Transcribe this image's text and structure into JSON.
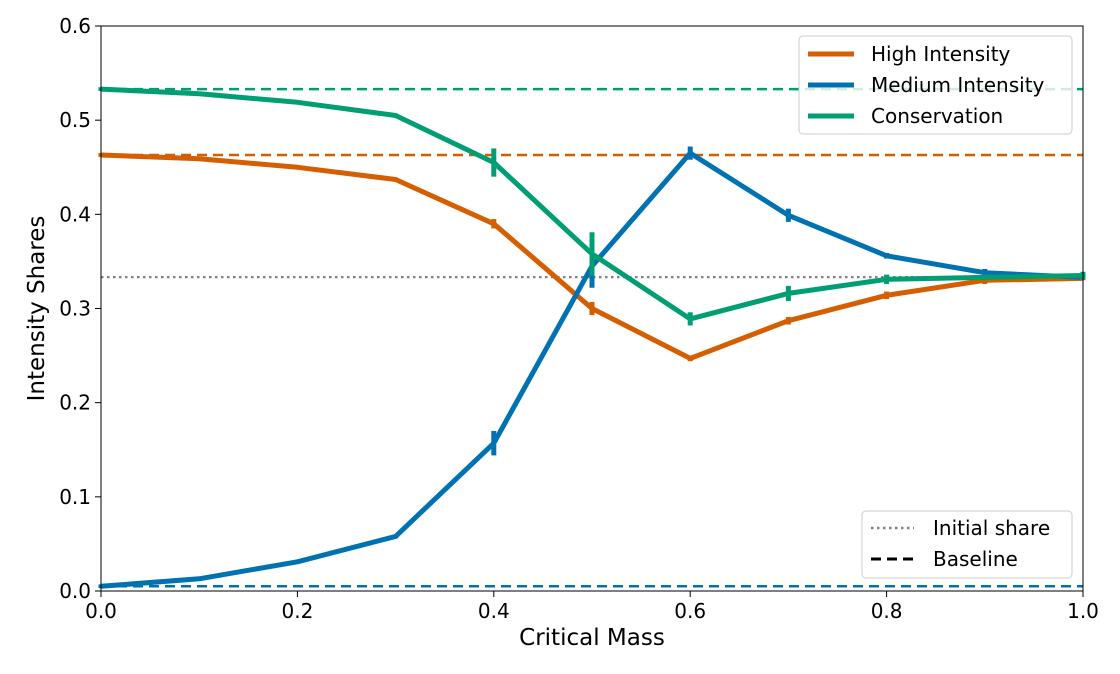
{
  "chart_data": {
    "type": "line",
    "title": "",
    "xlabel": "Critical Mass",
    "ylabel": "Intensity Shares",
    "xlim": [
      0.0,
      1.0
    ],
    "ylim": [
      0.0,
      0.6
    ],
    "xticks": [
      "0.0",
      "0.2",
      "0.4",
      "0.6",
      "0.8",
      "1.0"
    ],
    "xtick_values": [
      0.0,
      0.2,
      0.4,
      0.6,
      0.8,
      1.0
    ],
    "yticks": [
      "0.0",
      "0.1",
      "0.2",
      "0.3",
      "0.4",
      "0.5",
      "0.6"
    ],
    "ytick_values": [
      0.0,
      0.1,
      0.2,
      0.3,
      0.4,
      0.5,
      0.6
    ],
    "grid": false,
    "x": [
      0.0,
      0.1,
      0.2,
      0.3,
      0.4,
      0.5,
      0.6,
      0.7,
      0.8,
      0.9,
      1.0
    ],
    "series": [
      {
        "name": "High Intensity",
        "color": "#d55e00",
        "values": [
          0.463,
          0.459,
          0.45,
          0.437,
          0.39,
          0.3,
          0.247,
          0.287,
          0.314,
          0.33,
          0.332
        ],
        "errors": [
          0.0,
          0.0,
          0.0,
          0.0,
          0.005,
          0.007,
          0.003,
          0.004,
          0.004,
          0.004,
          0.002
        ],
        "baseline": 0.463
      },
      {
        "name": "Medium Intensity",
        "color": "#0072b2",
        "values": [
          0.005,
          0.013,
          0.031,
          0.058,
          0.157,
          0.345,
          0.465,
          0.399,
          0.356,
          0.338,
          0.333
        ],
        "errors": [
          0.0,
          0.0,
          0.002,
          0.002,
          0.013,
          0.023,
          0.007,
          0.007,
          0.003,
          0.004,
          0.002
        ],
        "baseline": 0.005
      },
      {
        "name": "Conservation",
        "color": "#009e73",
        "values": [
          0.533,
          0.528,
          0.519,
          0.505,
          0.455,
          0.358,
          0.289,
          0.316,
          0.331,
          0.333,
          0.335
        ],
        "errors": [
          0.0,
          0.0,
          0.002,
          0.002,
          0.015,
          0.023,
          0.007,
          0.008,
          0.005,
          0.003,
          0.004
        ],
        "baseline": 0.533
      }
    ],
    "reference_lines": [
      {
        "name": "Initial share",
        "style": "dotted",
        "color": "#808080",
        "value": 0.3333
      }
    ],
    "legends": [
      {
        "placement": "top-right",
        "entries": [
          "High Intensity",
          "Medium Intensity",
          "Conservation"
        ]
      },
      {
        "placement": "bottom-right",
        "entries": [
          {
            "label": "Initial share",
            "style": "dotted",
            "color": "#808080"
          },
          {
            "label": "Baseline",
            "style": "dashed",
            "color": "#000000"
          }
        ]
      }
    ]
  }
}
